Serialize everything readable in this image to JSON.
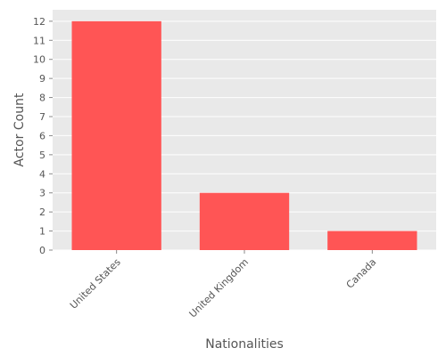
{
  "colors": {
    "bar": "#FF5555",
    "plot_background": "#E9E9E9",
    "grid": "#FFFFFF",
    "text": "#555555"
  },
  "chart_data": {
    "type": "bar",
    "categories": [
      "United States",
      "United Kingdom",
      "Canada"
    ],
    "values": [
      12,
      3,
      1
    ],
    "title": "",
    "xlabel": "Nationalities",
    "ylabel": "Actor Count",
    "ylim": [
      0,
      12.6
    ],
    "yticks": [
      0,
      1,
      2,
      3,
      4,
      5,
      6,
      7,
      8,
      9,
      10,
      11,
      12
    ],
    "grid": true,
    "legend": "none",
    "xtick_rotation_deg": 45
  }
}
